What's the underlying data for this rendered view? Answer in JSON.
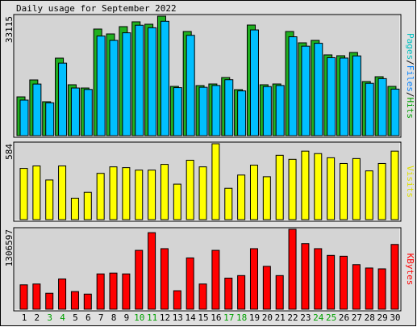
{
  "title": "Daily usage for September 2022",
  "categories": [
    "1",
    "2",
    "3",
    "4",
    "5",
    "6",
    "7",
    "8",
    "9",
    "10",
    "11",
    "12",
    "13",
    "14",
    "15",
    "16",
    "17",
    "18",
    "19",
    "20",
    "21",
    "22",
    "23",
    "24",
    "25",
    "26",
    "27",
    "28",
    "29",
    "30"
  ],
  "category_colors": [
    "#000000",
    "#000000",
    "#00a000",
    "#00a000",
    "#000000",
    "#000000",
    "#000000",
    "#000000",
    "#000000",
    "#00a000",
    "#00a000",
    "#000000",
    "#000000",
    "#000000",
    "#000000",
    "#000000",
    "#00a000",
    "#00a000",
    "#000000",
    "#000000",
    "#000000",
    "#000000",
    "#000000",
    "#00a000",
    "#00a000",
    "#000000",
    "#000000",
    "#000000",
    "#000000",
    "#000000"
  ],
  "chart_data": [
    {
      "type": "bar",
      "ylim": [
        0,
        33115
      ],
      "yticks": [
        33115
      ],
      "legend": [
        {
          "text": "Pages",
          "color": "#00c0c0"
        },
        {
          "text": "/",
          "color": "#000000"
        },
        {
          "text": "Files",
          "color": "#0080ff"
        },
        {
          "text": "/",
          "color": "#000000"
        },
        {
          "text": "Hits",
          "color": "#00a000"
        }
      ],
      "series": [
        {
          "name": "Hits",
          "color": "#20b020",
          "values": [
            10740,
            15440,
            9400,
            21480,
            14100,
            13200,
            29540,
            28190,
            30210,
            31550,
            30880,
            33115,
            13650,
            28860,
            13870,
            14320,
            16110,
            12750,
            30650,
            14100,
            14320,
            28860,
            25730,
            26400,
            22380,
            22150,
            23050,
            14990,
            16330,
            13650
          ]
        },
        {
          "name": "Files",
          "color": "#00bfff",
          "values": [
            9850,
            14300,
            9100,
            20100,
            13200,
            12800,
            27600,
            26400,
            28500,
            30600,
            29900,
            31700,
            13300,
            27800,
            13400,
            13900,
            15500,
            12400,
            29300,
            13600,
            13900,
            27400,
            24800,
            25600,
            21600,
            21500,
            22100,
            14500,
            15800,
            12900
          ]
        }
      ]
    },
    {
      "type": "bar",
      "ylim": [
        0,
        584
      ],
      "yticks": [
        584
      ],
      "legend": [
        {
          "text": "Visits",
          "color": "#e0e000"
        }
      ],
      "series": [
        {
          "name": "Visits",
          "color": "#ffff00",
          "values": [
            394,
            413,
            305,
            413,
            165,
            210,
            356,
            406,
            400,
            381,
            381,
            425,
            273,
            457,
            406,
            584,
            241,
            343,
            419,
            330,
            495,
            464,
            527,
            508,
            476,
            432,
            470,
            375,
            432,
            527
          ]
        }
      ]
    },
    {
      "type": "bar",
      "ylim": [
        0,
        1306597
      ],
      "yticks": [
        1306597
      ],
      "legend": [
        {
          "text": "KBytes",
          "color": "#ff0000"
        }
      ],
      "series": [
        {
          "name": "KBytes",
          "color": "#ff0000",
          "values": [
            398870,
            412620,
            261330,
            495150,
            288840,
            247580,
            577680,
            591430,
            577680,
            962780,
            1251610,
            990290,
            302590,
            839010,
            412620,
            962780,
            508900,
            550160,
            990290,
            701460,
            550160,
            1306597,
            1072810,
            990290,
            880260,
            866500,
            728970,
            673950,
            660200,
            1059060
          ]
        }
      ]
    }
  ]
}
